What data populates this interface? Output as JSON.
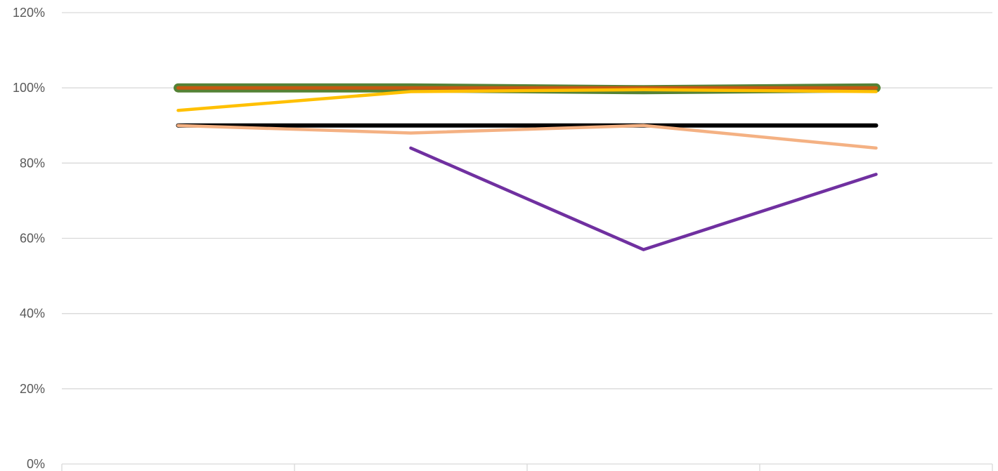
{
  "chart_data": {
    "type": "line",
    "title": "",
    "xlabel": "",
    "ylabel": "",
    "categories": [
      "",
      "",
      "",
      ""
    ],
    "ylim": [
      0,
      1.2
    ],
    "y_ticks": [
      {
        "value": 0,
        "label": "0%"
      },
      {
        "value": 0.2,
        "label": "20%"
      },
      {
        "value": 0.4,
        "label": "40%"
      },
      {
        "value": 0.6,
        "label": "60%"
      },
      {
        "value": 0.8,
        "label": "80%"
      },
      {
        "value": 1.0,
        "label": "100%"
      },
      {
        "value": 1.2,
        "label": "120%"
      }
    ],
    "grid": true,
    "legend": "none",
    "series": [
      {
        "color": "#000000",
        "values": [
          0.9,
          0.9,
          0.9,
          0.9
        ]
      },
      {
        "color": "#F4B183",
        "values": [
          0.9,
          0.88,
          0.9,
          0.84
        ]
      },
      {
        "color": "#7030A0",
        "values": [
          null,
          0.84,
          0.57,
          0.77
        ]
      },
      {
        "color": "#548235",
        "values": [
          1.0,
          1.0,
          0.995,
          1.0
        ]
      },
      {
        "color": "#C55A11",
        "values": [
          1.0,
          1.0,
          1.0,
          1.0
        ]
      },
      {
        "color": "#FFC000",
        "values": [
          0.94,
          0.99,
          0.995,
          0.99
        ]
      }
    ]
  }
}
